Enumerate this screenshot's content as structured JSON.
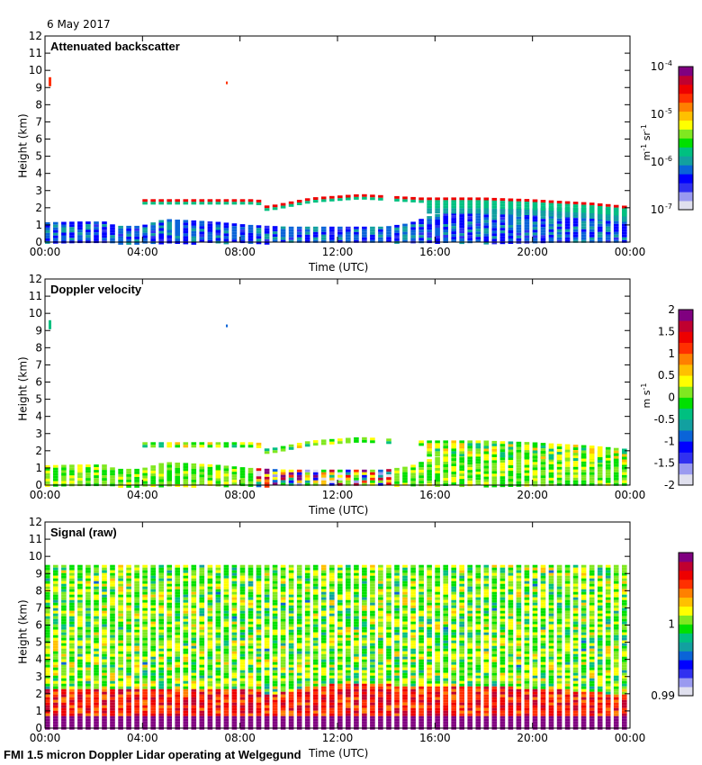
{
  "date": "6 May 2017",
  "footer": "FMI 1.5 micron Doppler Lidar operating at Welgegund",
  "colors": {
    "colormap": [
      "#e0e0ee",
      "#9a9af0",
      "#3030f0",
      "#0000ff",
      "#0a64d8",
      "#12a0a0",
      "#00c080",
      "#00e000",
      "#80e820",
      "#ffff00",
      "#ffc000",
      "#ff8000",
      "#ff3000",
      "#ee0000",
      "#c00030",
      "#800080"
    ],
    "axis": "#000000"
  },
  "chart_data": [
    {
      "type": "heatmap",
      "title": "Attenuated backscatter",
      "xlabel": "Time (UTC)",
      "ylabel": "Height (km)",
      "xlim": [
        0,
        24
      ],
      "ylim": [
        0,
        12
      ],
      "xticks": [
        "00:00",
        "04:00",
        "08:00",
        "12:00",
        "16:00",
        "20:00",
        "00:00"
      ],
      "yticks": [
        "0",
        "1",
        "2",
        "3",
        "4",
        "5",
        "6",
        "7",
        "8",
        "9",
        "10",
        "11",
        "12"
      ],
      "colorbar": {
        "label": "m-1 sr-1",
        "label_main": "m",
        "sup1": "-1",
        "mid": " sr",
        "sup2": "-1",
        "scale": "log",
        "range": [
          1e-07,
          0.0001
        ],
        "ticks": [
          {
            "base": "10",
            "exp": "-7"
          },
          {
            "base": "10",
            "exp": "-6"
          },
          {
            "base": "10",
            "exp": "-5"
          },
          {
            "base": "10",
            "exp": "-4"
          }
        ]
      },
      "mode": "backscatter"
    },
    {
      "type": "heatmap",
      "title": "Doppler velocity",
      "xlabel": "Time (UTC)",
      "ylabel": "Height (km)",
      "xlim": [
        0,
        24
      ],
      "ylim": [
        0,
        12
      ],
      "xticks": [
        "00:00",
        "04:00",
        "08:00",
        "12:00",
        "16:00",
        "20:00",
        "00:00"
      ],
      "yticks": [
        "0",
        "1",
        "2",
        "3",
        "4",
        "5",
        "6",
        "7",
        "8",
        "9",
        "10",
        "11",
        "12"
      ],
      "colorbar": {
        "label": "m s-1",
        "label_main": "m s",
        "sup1": "-1",
        "scale": "linear",
        "range": [
          -2,
          2
        ],
        "ticks": [
          "-2",
          "-1.5",
          "-1",
          "-0.5",
          "0",
          "0.5",
          "1",
          "1.5",
          "2"
        ]
      },
      "mode": "velocity"
    },
    {
      "type": "heatmap",
      "title": "Signal (raw)",
      "xlabel": "Time (UTC)",
      "ylabel": "Height (km)",
      "xlim": [
        0,
        24
      ],
      "ylim": [
        0,
        12
      ],
      "xticks": [
        "00:00",
        "04:00",
        "08:00",
        "12:00",
        "16:00",
        "20:00",
        "00:00"
      ],
      "yticks": [
        "0",
        "1",
        "2",
        "3",
        "4",
        "5",
        "6",
        "7",
        "8",
        "9",
        "10",
        "11",
        "12"
      ],
      "colorbar": {
        "label": "",
        "scale": "linear",
        "range": [
          0.99,
          1.01
        ],
        "ticks": [
          "0.99",
          "1"
        ]
      },
      "mode": "signal"
    }
  ],
  "layers": {
    "cloud_layer_km": [
      [
        4.0,
        2.5
      ],
      [
        8.8,
        2.5
      ],
      [
        9.2,
        2.1
      ],
      [
        11.0,
        2.6
      ],
      [
        13.0,
        2.8
      ],
      [
        15.5,
        2.6
      ],
      [
        18.0,
        2.6
      ],
      [
        20.0,
        2.5
      ],
      [
        22.5,
        2.3
      ],
      [
        24.0,
        2.1
      ]
    ],
    "boundary_layer_km": [
      [
        0,
        1.15
      ],
      [
        1.5,
        1.2
      ],
      [
        2.5,
        1.2
      ],
      [
        3.0,
        0.95
      ],
      [
        4.0,
        0.95
      ],
      [
        5.0,
        1.35
      ],
      [
        7.0,
        1.2
      ],
      [
        8.5,
        1.0
      ],
      [
        10.0,
        0.9
      ],
      [
        14.0,
        0.9
      ],
      [
        15.0,
        1.1
      ],
      [
        16.0,
        1.6
      ],
      [
        18.0,
        1.9
      ],
      [
        21.0,
        2.0
      ],
      [
        24.0,
        2.0
      ]
    ],
    "signal_top_km": 9.5
  }
}
